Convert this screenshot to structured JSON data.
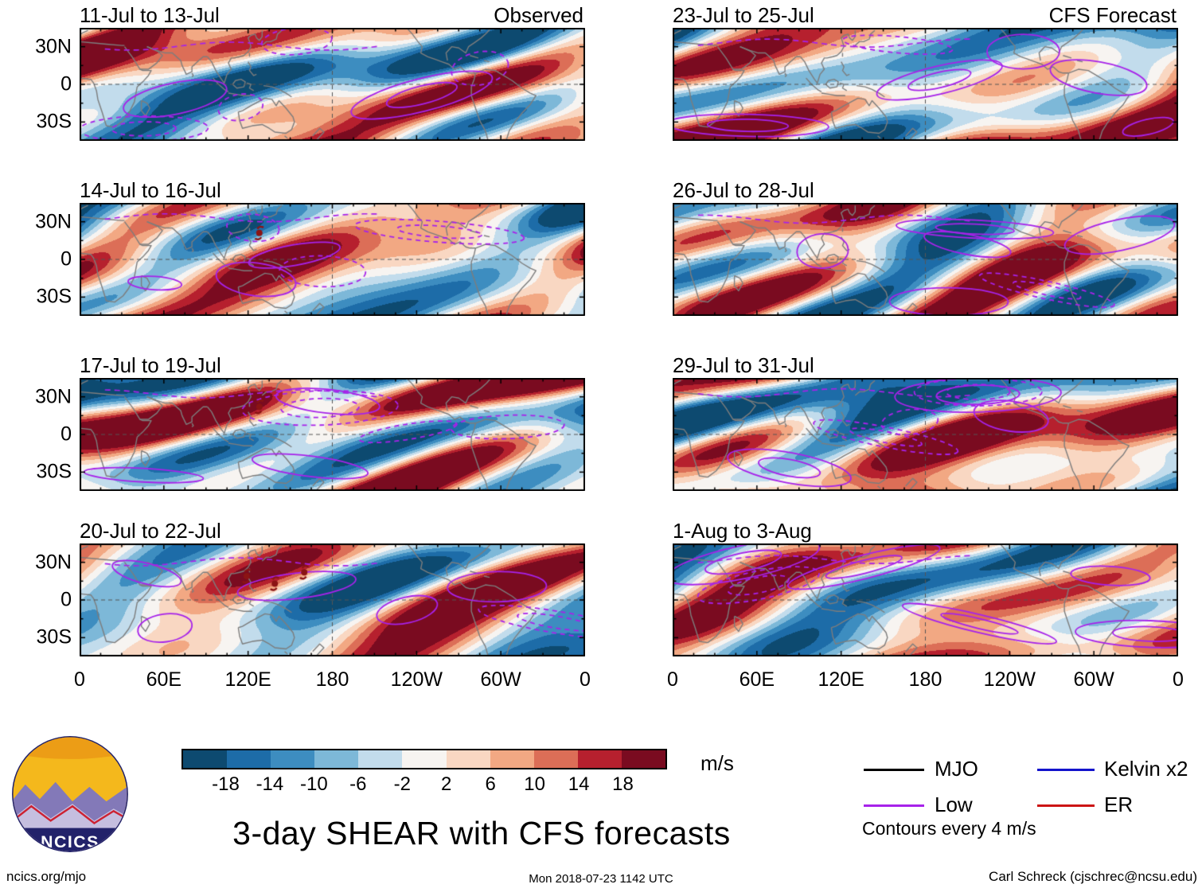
{
  "figure": {
    "title": "3-day SHEAR with CFS forecasts",
    "footer_left": "ncics.org/mjo",
    "footer_center": "Mon 2018-07-23 1142 UTC",
    "footer_right": "Carl Schreck (cjschrec@ncsu.edu)",
    "logo_text": "NCICS"
  },
  "chart_data": {
    "type": "heatmap",
    "description": "Eight 3-day mean wind-shear anomaly world maps (equirectangular, 0-360E, 45S-45N). Shading every 4 m/s (blue negative, red positive), purple wave contours overlaid; left column observed, right column CFS forecast.",
    "columns": [
      {
        "heading": "Observed"
      },
      {
        "heading": "CFS Forecast"
      }
    ],
    "map_extent": {
      "lon": [
        0,
        360
      ],
      "lat": [
        -45,
        45
      ]
    },
    "panels": [
      {
        "title": "11-Jul to 13-Jul",
        "corner_label": "Observed",
        "column": "Observed"
      },
      {
        "title": "14-Jul to 16-Jul",
        "column": "Observed",
        "storms": [
          {
            "lon": 128,
            "lat": 21
          }
        ]
      },
      {
        "title": "17-Jul to 19-Jul",
        "column": "Observed",
        "storms": [
          {
            "lon": 128,
            "lat": 22
          }
        ]
      },
      {
        "title": "20-Jul to 22-Jul",
        "column": "Observed",
        "storms": [
          {
            "lon": 119,
            "lat": 19
          },
          {
            "lon": 139,
            "lat": 13
          },
          {
            "lon": 160,
            "lat": 22
          }
        ]
      },
      {
        "title": "23-Jul to 25-Jul",
        "corner_label": "CFS Forecast",
        "column": "CFS Forecast"
      },
      {
        "title": "26-Jul to 28-Jul",
        "column": "CFS Forecast"
      },
      {
        "title": "29-Jul to 31-Jul",
        "column": "CFS Forecast"
      },
      {
        "title": "1-Aug to 3-Aug",
        "column": "CFS Forecast"
      }
    ],
    "x_ticks": [
      "0",
      "60E",
      "120E",
      "180",
      "120W",
      "60W",
      "0"
    ],
    "y_ticks": [
      "30N",
      "0",
      "30S"
    ],
    "colorbar": {
      "units": "m/s",
      "ticks": [
        "-18",
        "-14",
        "-10",
        "-6",
        "-2",
        "2",
        "6",
        "10",
        "14",
        "18"
      ],
      "colors": [
        "#0d4a70",
        "#1d6ca8",
        "#3d8dc0",
        "#7db8d8",
        "#c2dcec",
        "#f7f4f1",
        "#f9d7c2",
        "#f2a883",
        "#dc6e57",
        "#b6202e",
        "#7a0b20"
      ]
    },
    "legend": [
      {
        "label": "MJO",
        "color": "#000000"
      },
      {
        "label": "Low",
        "color": "#a722ea"
      },
      {
        "label": "Kelvin x2",
        "color": "#1414cc"
      },
      {
        "label": "ER",
        "color": "#cc1414"
      }
    ],
    "contour_note": "Contours every 4 m/s"
  }
}
